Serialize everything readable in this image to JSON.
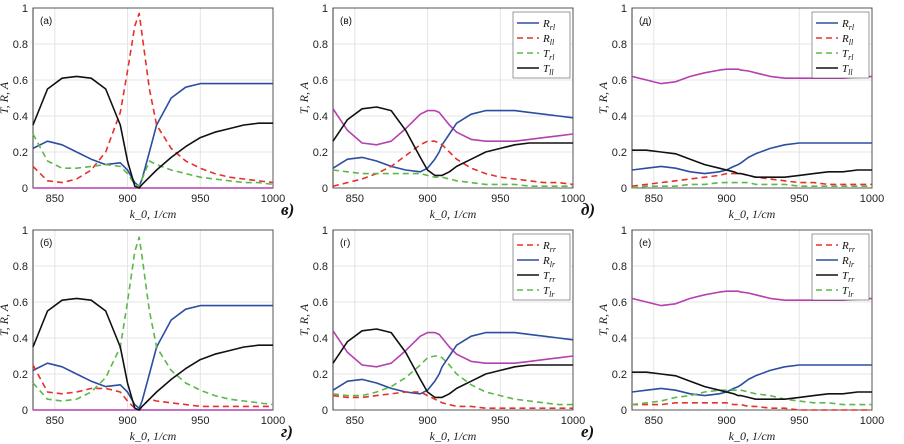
{
  "chart_data": {
    "type": "line",
    "x": [
      835,
      845,
      855,
      865,
      875,
      885,
      895,
      900,
      905,
      908,
      910,
      915,
      920,
      930,
      940,
      950,
      960,
      970,
      980,
      990,
      1000
    ],
    "xlabel": "k_0, 1/cm",
    "ylabel": "T, R, A",
    "xlim": [
      835,
      1000
    ],
    "ylim": [
      0,
      1
    ],
    "xticks": [
      "850",
      "900",
      "950",
      "1000"
    ],
    "yticks": [
      "0",
      "0.2",
      "0.4",
      "0.6",
      "0.8",
      "1"
    ],
    "colors": {
      "blue": "#2b4ea0",
      "red": "#e8302a",
      "green": "#5cb84a",
      "black": "#111111",
      "magenta": "#b540b0"
    },
    "panels": [
      {
        "id": "a",
        "tag": "(а)",
        "corner": "в)",
        "legend": null,
        "series": [
          {
            "name": "A",
            "color": "magenta",
            "dash": false,
            "values": [
              0,
              0,
              0,
              0,
              0,
              0,
              0,
              0,
              0,
              0,
              0,
              0,
              0,
              0,
              0,
              0,
              0,
              0,
              0,
              0,
              0
            ]
          },
          {
            "name": "R_rl",
            "color": "blue",
            "dash": false,
            "values": [
              0.22,
              0.26,
              0.24,
              0.2,
              0.16,
              0.13,
              0.14,
              0.1,
              0.03,
              0.01,
              0.05,
              0.2,
              0.35,
              0.5,
              0.56,
              0.58,
              0.58,
              0.58,
              0.58,
              0.58,
              0.58
            ]
          },
          {
            "name": "R_ll",
            "color": "red",
            "dash": true,
            "values": [
              0.12,
              0.04,
              0.03,
              0.05,
              0.1,
              0.2,
              0.42,
              0.65,
              0.9,
              0.97,
              0.85,
              0.55,
              0.35,
              0.22,
              0.15,
              0.11,
              0.08,
              0.06,
              0.05,
              0.04,
              0.03
            ]
          },
          {
            "name": "T_rl",
            "color": "green",
            "dash": true,
            "values": [
              0.3,
              0.15,
              0.11,
              0.11,
              0.12,
              0.13,
              0.12,
              0.08,
              0.02,
              0.01,
              0.05,
              0.15,
              0.13,
              0.1,
              0.08,
              0.06,
              0.05,
              0.04,
              0.03,
              0.03,
              0.02
            ]
          },
          {
            "name": "T_ll",
            "color": "black",
            "dash": false,
            "values": [
              0.35,
              0.55,
              0.61,
              0.62,
              0.61,
              0.55,
              0.35,
              0.15,
              0.01,
              0,
              0.02,
              0.06,
              0.1,
              0.17,
              0.23,
              0.28,
              0.31,
              0.33,
              0.35,
              0.36,
              0.36
            ]
          }
        ]
      },
      {
        "id": "v",
        "tag": "(в)",
        "corner": "д)",
        "legend": [
          "R_rl",
          "R_ll",
          "T_rl",
          "T_ll"
        ],
        "series": [
          {
            "name": "A",
            "color": "magenta",
            "dash": false,
            "values": [
              0.44,
              0.32,
              0.25,
              0.24,
              0.26,
              0.33,
              0.41,
              0.43,
              0.43,
              0.42,
              0.4,
              0.35,
              0.31,
              0.27,
              0.26,
              0.26,
              0.26,
              0.27,
              0.28,
              0.29,
              0.3
            ]
          },
          {
            "name": "R_rl",
            "color": "blue",
            "dash": false,
            "values": [
              0.11,
              0.16,
              0.17,
              0.15,
              0.12,
              0.1,
              0.09,
              0.11,
              0.16,
              0.2,
              0.24,
              0.3,
              0.36,
              0.41,
              0.43,
              0.43,
              0.43,
              0.42,
              0.41,
              0.4,
              0.39
            ]
          },
          {
            "name": "R_ll",
            "color": "red",
            "dash": true,
            "values": [
              0.01,
              0.03,
              0.05,
              0.08,
              0.12,
              0.18,
              0.24,
              0.26,
              0.26,
              0.25,
              0.24,
              0.2,
              0.16,
              0.11,
              0.08,
              0.06,
              0.05,
              0.04,
              0.03,
              0.03,
              0.02
            ]
          },
          {
            "name": "T_rl",
            "color": "green",
            "dash": true,
            "values": [
              0.1,
              0.09,
              0.08,
              0.08,
              0.08,
              0.08,
              0.08,
              0.07,
              0.06,
              0.06,
              0.06,
              0.05,
              0.04,
              0.03,
              0.02,
              0.02,
              0.02,
              0.01,
              0.01,
              0.01,
              0.01
            ]
          },
          {
            "name": "T_ll",
            "color": "black",
            "dash": false,
            "values": [
              0.26,
              0.38,
              0.44,
              0.45,
              0.43,
              0.32,
              0.17,
              0.1,
              0.07,
              0.07,
              0.07,
              0.09,
              0.12,
              0.16,
              0.2,
              0.22,
              0.24,
              0.25,
              0.25,
              0.25,
              0.25
            ]
          }
        ]
      },
      {
        "id": "d",
        "tag": "(д)",
        "corner": "",
        "legend": [
          "R_rl",
          "R_ll",
          "T_rl",
          "T_ll"
        ],
        "series": [
          {
            "name": "A",
            "color": "magenta",
            "dash": false,
            "values": [
              0.62,
              0.6,
              0.58,
              0.59,
              0.62,
              0.64,
              0.655,
              0.66,
              0.66,
              0.66,
              0.655,
              0.65,
              0.64,
              0.62,
              0.61,
              0.61,
              0.61,
              0.61,
              0.61,
              0.615,
              0.62
            ]
          },
          {
            "name": "R_rl",
            "color": "blue",
            "dash": false,
            "values": [
              0.1,
              0.11,
              0.12,
              0.11,
              0.09,
              0.08,
              0.09,
              0.1,
              0.12,
              0.13,
              0.14,
              0.17,
              0.19,
              0.22,
              0.24,
              0.25,
              0.25,
              0.25,
              0.25,
              0.25,
              0.25
            ]
          },
          {
            "name": "R_ll",
            "color": "red",
            "dash": true,
            "values": [
              0.01,
              0.02,
              0.03,
              0.04,
              0.05,
              0.06,
              0.07,
              0.08,
              0.08,
              0.08,
              0.08,
              0.07,
              0.06,
              0.05,
              0.04,
              0.03,
              0.03,
              0.02,
              0.02,
              0.02,
              0.02
            ]
          },
          {
            "name": "T_rl",
            "color": "green",
            "dash": true,
            "values": [
              0,
              0.01,
              0.01,
              0.01,
              0.02,
              0.02,
              0.03,
              0.03,
              0.03,
              0.03,
              0.03,
              0.03,
              0.02,
              0.02,
              0.02,
              0.01,
              0.01,
              0.01,
              0.01,
              0.01,
              0.01
            ]
          },
          {
            "name": "T_ll",
            "color": "black",
            "dash": false,
            "values": [
              0.21,
              0.21,
              0.2,
              0.19,
              0.16,
              0.13,
              0.11,
              0.1,
              0.09,
              0.08,
              0.08,
              0.07,
              0.06,
              0.06,
              0.06,
              0.07,
              0.08,
              0.09,
              0.09,
              0.1,
              0.1
            ]
          }
        ]
      },
      {
        "id": "b",
        "tag": "(б)",
        "corner": "г)",
        "legend": null,
        "series": [
          {
            "name": "A",
            "color": "magenta",
            "dash": false,
            "values": [
              0,
              0,
              0,
              0,
              0,
              0,
              0,
              0,
              0,
              0,
              0,
              0,
              0,
              0,
              0,
              0,
              0,
              0,
              0,
              0,
              0
            ]
          },
          {
            "name": "R_lr",
            "color": "blue",
            "dash": false,
            "values": [
              0.22,
              0.26,
              0.24,
              0.2,
              0.16,
              0.13,
              0.14,
              0.1,
              0.03,
              0.01,
              0.05,
              0.2,
              0.35,
              0.5,
              0.56,
              0.58,
              0.58,
              0.58,
              0.58,
              0.58,
              0.58
            ]
          },
          {
            "name": "R_rr",
            "color": "red",
            "dash": true,
            "values": [
              0.25,
              0.1,
              0.09,
              0.1,
              0.12,
              0.12,
              0.1,
              0.05,
              0.01,
              0,
              0.02,
              0.06,
              0.05,
              0.04,
              0.03,
              0.02,
              0.02,
              0.02,
              0.02,
              0.02,
              0.02
            ]
          },
          {
            "name": "T_lr",
            "color": "green",
            "dash": true,
            "values": [
              0.15,
              0.06,
              0.05,
              0.06,
              0.1,
              0.18,
              0.35,
              0.6,
              0.88,
              0.96,
              0.85,
              0.55,
              0.35,
              0.22,
              0.15,
              0.11,
              0.08,
              0.06,
              0.05,
              0.04,
              0.03
            ]
          },
          {
            "name": "T_rr",
            "color": "black",
            "dash": false,
            "values": [
              0.35,
              0.55,
              0.61,
              0.62,
              0.61,
              0.55,
              0.35,
              0.15,
              0.01,
              0,
              0.02,
              0.06,
              0.1,
              0.17,
              0.23,
              0.28,
              0.31,
              0.33,
              0.35,
              0.36,
              0.36
            ]
          }
        ]
      },
      {
        "id": "g",
        "tag": "(г)",
        "corner": "е)",
        "legend": [
          "R_rr",
          "R_lr",
          "T_rr",
          "T_lr"
        ],
        "series": [
          {
            "name": "A",
            "color": "magenta",
            "dash": false,
            "values": [
              0.44,
              0.32,
              0.25,
              0.24,
              0.26,
              0.33,
              0.41,
              0.43,
              0.43,
              0.42,
              0.4,
              0.35,
              0.31,
              0.27,
              0.26,
              0.26,
              0.26,
              0.27,
              0.28,
              0.29,
              0.3
            ]
          },
          {
            "name": "R_lr",
            "color": "blue",
            "dash": false,
            "values": [
              0.11,
              0.16,
              0.17,
              0.15,
              0.12,
              0.1,
              0.09,
              0.11,
              0.16,
              0.2,
              0.24,
              0.3,
              0.36,
              0.41,
              0.43,
              0.43,
              0.43,
              0.42,
              0.41,
              0.4,
              0.39
            ]
          },
          {
            "name": "R_rr",
            "color": "red",
            "dash": true,
            "values": [
              0.08,
              0.07,
              0.07,
              0.08,
              0.09,
              0.1,
              0.1,
              0.08,
              0.06,
              0.05,
              0.04,
              0.03,
              0.02,
              0.02,
              0.01,
              0.01,
              0.01,
              0.01,
              0.01,
              0.01,
              0.01
            ]
          },
          {
            "name": "T_lr",
            "color": "green",
            "dash": true,
            "values": [
              0.09,
              0.08,
              0.08,
              0.1,
              0.13,
              0.18,
              0.25,
              0.29,
              0.3,
              0.3,
              0.29,
              0.25,
              0.2,
              0.14,
              0.1,
              0.08,
              0.06,
              0.05,
              0.04,
              0.03,
              0.03
            ]
          },
          {
            "name": "T_rr",
            "color": "black",
            "dash": false,
            "values": [
              0.26,
              0.38,
              0.44,
              0.45,
              0.43,
              0.32,
              0.17,
              0.1,
              0.07,
              0.07,
              0.07,
              0.09,
              0.12,
              0.16,
              0.2,
              0.22,
              0.24,
              0.25,
              0.25,
              0.25,
              0.25
            ]
          }
        ]
      },
      {
        "id": "e",
        "tag": "(е)",
        "corner": "",
        "legend": [
          "R_rr",
          "R_lr",
          "T_rr",
          "T_lr"
        ],
        "series": [
          {
            "name": "A",
            "color": "magenta",
            "dash": false,
            "values": [
              0.62,
              0.6,
              0.58,
              0.59,
              0.62,
              0.64,
              0.655,
              0.66,
              0.66,
              0.66,
              0.655,
              0.65,
              0.64,
              0.62,
              0.61,
              0.61,
              0.61,
              0.61,
              0.61,
              0.615,
              0.62
            ]
          },
          {
            "name": "R_lr",
            "color": "blue",
            "dash": false,
            "values": [
              0.1,
              0.11,
              0.12,
              0.11,
              0.09,
              0.08,
              0.09,
              0.1,
              0.12,
              0.13,
              0.14,
              0.17,
              0.19,
              0.22,
              0.24,
              0.25,
              0.25,
              0.25,
              0.25,
              0.25,
              0.25
            ]
          },
          {
            "name": "R_rr",
            "color": "red",
            "dash": true,
            "values": [
              0.03,
              0.03,
              0.03,
              0.04,
              0.04,
              0.04,
              0.04,
              0.04,
              0.03,
              0.03,
              0.03,
              0.02,
              0.02,
              0.01,
              0.01,
              0,
              0,
              0,
              0,
              0,
              0
            ]
          },
          {
            "name": "T_lr",
            "color": "green",
            "dash": true,
            "values": [
              0.03,
              0.04,
              0.05,
              0.07,
              0.08,
              0.1,
              0.11,
              0.11,
              0.11,
              0.11,
              0.11,
              0.1,
              0.09,
              0.08,
              0.06,
              0.05,
              0.04,
              0.04,
              0.03,
              0.03,
              0.03
            ]
          },
          {
            "name": "T_rr",
            "color": "black",
            "dash": false,
            "values": [
              0.21,
              0.21,
              0.2,
              0.19,
              0.16,
              0.13,
              0.11,
              0.1,
              0.09,
              0.08,
              0.08,
              0.07,
              0.06,
              0.06,
              0.06,
              0.07,
              0.08,
              0.09,
              0.09,
              0.1,
              0.1
            ]
          }
        ]
      }
    ]
  }
}
